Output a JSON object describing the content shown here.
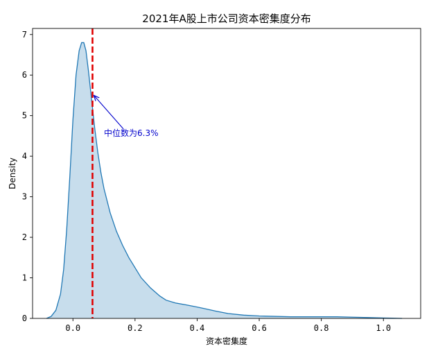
{
  "chart_data": {
    "type": "area",
    "title": "2021年A股上市公司资本密集度分布",
    "xlabel": "资本密集度",
    "ylabel": "Density",
    "xlim": [
      -0.13,
      1.12
    ],
    "ylim": [
      0,
      7.15
    ],
    "xticks": [
      0.0,
      0.2,
      0.4,
      0.6,
      0.8,
      1.0
    ],
    "xtick_labels": [
      "0.0",
      "0.2",
      "0.4",
      "0.6",
      "0.8",
      "1.0"
    ],
    "yticks": [
      0,
      1,
      2,
      3,
      4,
      5,
      6,
      7
    ],
    "ytick_labels": [
      "0",
      "1",
      "2",
      "3",
      "4",
      "5",
      "6",
      "7"
    ],
    "grid": false,
    "line_color": "#1f77b4",
    "fill_color": "#1f77b4",
    "series": [
      {
        "x": [
          -0.085,
          -0.07,
          -0.055,
          -0.04,
          -0.03,
          -0.02,
          -0.01,
          0.0,
          0.01,
          0.02,
          0.028,
          0.035,
          0.042,
          0.05,
          0.06,
          0.07,
          0.08,
          0.09,
          0.1,
          0.12,
          0.14,
          0.16,
          0.18,
          0.2,
          0.22,
          0.25,
          0.28,
          0.3,
          0.33,
          0.36,
          0.4,
          0.43,
          0.46,
          0.5,
          0.55,
          0.6,
          0.65,
          0.7,
          0.75,
          0.8,
          0.85,
          0.9,
          0.95,
          1.0,
          1.03,
          1.06
        ],
        "y": [
          0.0,
          0.05,
          0.2,
          0.6,
          1.2,
          2.2,
          3.5,
          4.9,
          6.0,
          6.6,
          6.8,
          6.8,
          6.6,
          6.1,
          5.4,
          4.7,
          4.1,
          3.6,
          3.2,
          2.6,
          2.15,
          1.8,
          1.5,
          1.25,
          1.0,
          0.75,
          0.55,
          0.45,
          0.38,
          0.34,
          0.28,
          0.23,
          0.18,
          0.12,
          0.08,
          0.06,
          0.05,
          0.04,
          0.04,
          0.04,
          0.04,
          0.03,
          0.02,
          0.01,
          0.005,
          0.0
        ]
      }
    ],
    "median": {
      "x": 0.063,
      "color": "#e00000",
      "label": "中位数为6.3%",
      "label_color": "#0000cc",
      "arrow_target_y": 5.5,
      "text_x": 0.1,
      "text_y": 4.5
    }
  }
}
